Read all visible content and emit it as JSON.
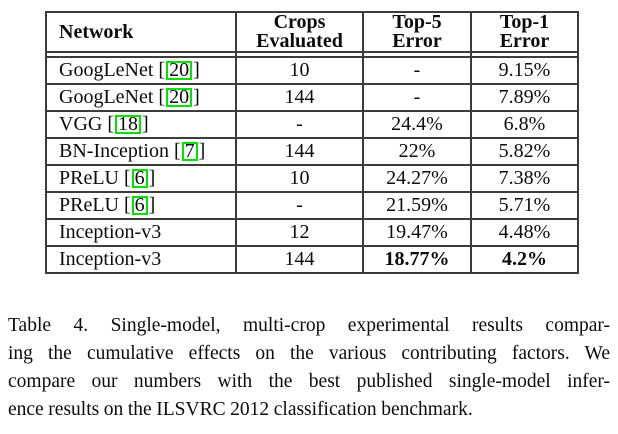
{
  "colors": {
    "citation_box": "#00e400",
    "table_border": "#3c3c3c",
    "text": "#0b0b10",
    "background": "#ffffff"
  },
  "table": {
    "columns": [
      {
        "line1": "Network"
      },
      {
        "line1": "Crops",
        "line2": "Evaluated"
      },
      {
        "line1": "Top-5",
        "line2": "Error"
      },
      {
        "line1": "Top-1",
        "line2": "Error"
      }
    ],
    "citation_brackets": {
      "open": "[",
      "close": "]"
    },
    "rows": [
      {
        "network": "GoogLeNet",
        "cite": "20",
        "crops": "10",
        "top5": "-",
        "top1": "9.15%",
        "bold": false
      },
      {
        "network": "GoogLeNet",
        "cite": "20",
        "crops": "144",
        "top5": "-",
        "top1": "7.89%",
        "bold": false
      },
      {
        "network": "VGG",
        "cite": "18",
        "crops": "-",
        "top5": "24.4%",
        "top1": "6.8%",
        "bold": false
      },
      {
        "network": "BN-Inception",
        "cite": "7",
        "crops": "144",
        "top5": "22%",
        "top1": "5.82%",
        "bold": false
      },
      {
        "network": "PReLU",
        "cite": "6",
        "crops": "10",
        "top5": "24.27%",
        "top1": "7.38%",
        "bold": false
      },
      {
        "network": "PReLU",
        "cite": "6",
        "crops": "-",
        "top5": "21.59%",
        "top1": "5.71%",
        "bold": false
      },
      {
        "network": "Inception-v3",
        "cite": null,
        "crops": "12",
        "top5": "19.47%",
        "top1": "4.48%",
        "bold": false
      },
      {
        "network": "Inception-v3",
        "cite": null,
        "crops": "144",
        "top5": "18.77%",
        "top1": "4.2%",
        "bold": true
      }
    ]
  },
  "caption": {
    "lines": [
      "Table 4. Single-model, multi-crop experimental results compar-",
      "ing the cumulative effects on the various contributing factors. We",
      "compare our numbers with the best published single-model infer-",
      "ence results on the ILSVRC 2012 classification benchmark."
    ]
  }
}
